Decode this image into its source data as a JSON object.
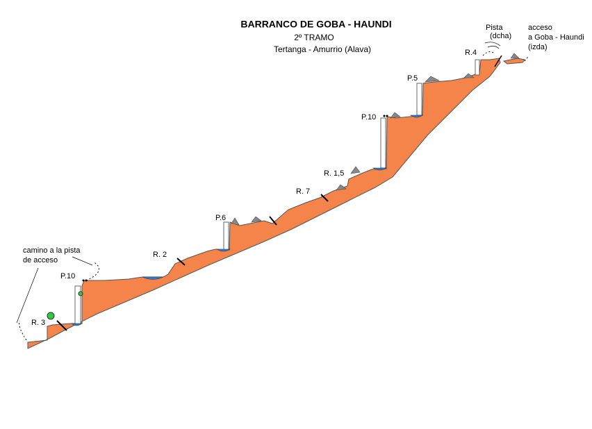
{
  "header": {
    "title": "BARRANCO DE GOBA - HAUNDI",
    "subtitle": "2º TRAMO",
    "location": "Tertanga - Amurrio (Alava)"
  },
  "labels": {
    "camino": [
      "camino a la pista",
      "de acceso"
    ],
    "r3": "R. 3",
    "p10a": "P.10",
    "r2": "R. 2",
    "p6": "P.6",
    "r7": "R. 7",
    "r15": "R. 1,5",
    "p10b": "P.10",
    "p5": "P.5",
    "r4": "R.4",
    "pista": [
      "Pista",
      "(dcha)"
    ],
    "acceso": [
      "acceso",
      "a Goba - Haundi",
      "(izda)"
    ]
  }
}
